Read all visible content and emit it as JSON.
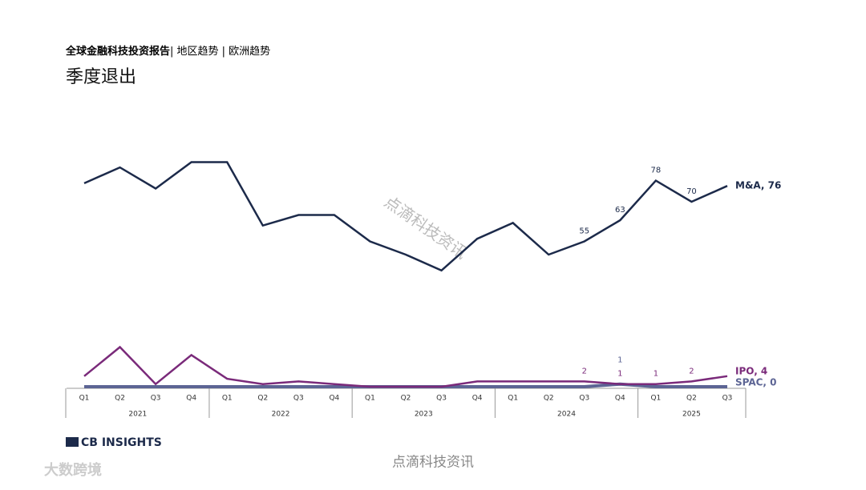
{
  "chart_data": {
    "type": "line",
    "breadcrumb": [
      "全球金融科技投资报告",
      "| 地区趋势 | 欧洲趋势"
    ],
    "title": "季度退出",
    "categories": [
      "Q1",
      "Q2",
      "Q3",
      "Q4",
      "Q1",
      "Q2",
      "Q3",
      "Q4",
      "Q1",
      "Q2",
      "Q3",
      "Q4",
      "Q1",
      "Q2",
      "Q3",
      "Q4",
      "Q1",
      "Q2",
      "Q3"
    ],
    "years": [
      "2021",
      "2022",
      "2023",
      "2024",
      "2025"
    ],
    "ylim": [
      0,
      100
    ],
    "series": [
      {
        "name": "M&A",
        "end_label": "M&A, 76",
        "color": "#1c2a4a",
        "values": [
          77,
          83,
          75,
          85,
          85,
          61,
          65,
          65,
          55,
          50,
          44,
          56,
          62,
          50,
          55,
          63,
          78,
          70,
          76
        ],
        "value_labels": [
          null,
          null,
          null,
          null,
          null,
          null,
          null,
          null,
          null,
          null,
          null,
          null,
          null,
          null,
          "55",
          "63",
          "78",
          "70",
          null
        ]
      },
      {
        "name": "IPO",
        "end_label": "IPO, 4",
        "color": "#7a2a7a",
        "values": [
          4,
          15,
          1,
          12,
          3,
          1,
          2,
          1,
          0,
          0,
          0,
          2,
          2,
          2,
          2,
          1,
          1,
          2,
          4
        ],
        "value_labels": [
          null,
          null,
          null,
          null,
          null,
          null,
          null,
          null,
          null,
          null,
          null,
          null,
          null,
          null,
          "2",
          "1",
          "1",
          "2",
          null
        ]
      },
      {
        "name": "SPAC",
        "end_label": "SPAC, 0",
        "color": "#5c6494",
        "values": [
          0,
          0,
          0,
          0,
          0,
          0,
          0,
          0,
          0,
          0,
          0,
          0,
          0,
          0,
          0,
          1,
          0,
          0,
          0
        ],
        "value_labels": [
          null,
          null,
          null,
          null,
          null,
          null,
          null,
          null,
          null,
          null,
          null,
          null,
          null,
          null,
          null,
          "1",
          null,
          null,
          null
        ]
      }
    ],
    "logo": "CB INSIGHTS",
    "watermarks": [
      "点滴科技资讯",
      "点滴科技资讯",
      "大数跨境"
    ]
  }
}
